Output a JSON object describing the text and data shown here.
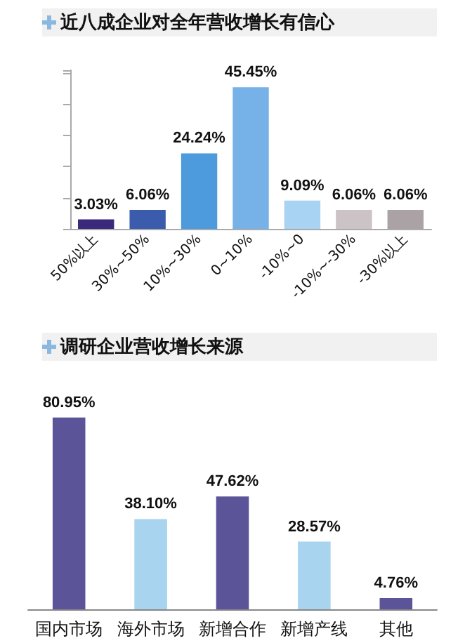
{
  "chart_data": [
    {
      "type": "bar",
      "title": "近八成企业对全年营收增长有信心",
      "categories": [
        "50%以上",
        "30%~50%",
        "10%~30%",
        "0~10%",
        "-10%~0",
        "-10%~-30%",
        "-30%以上"
      ],
      "values": [
        3.03,
        6.06,
        24.24,
        45.45,
        9.09,
        6.06,
        6.06
      ],
      "colors": [
        "#3a2a7c",
        "#3b5cad",
        "#4d9bdc",
        "#76b2e7",
        "#a9d3f2",
        "#cbc3c6",
        "#aba2a5"
      ],
      "value_labels": [
        "3.03%",
        "6.06%",
        "24.24%",
        "45.45%",
        "9.09%",
        "6.06%",
        "6.06%"
      ],
      "tick_labels": "x",
      "grid": false
    },
    {
      "type": "bar",
      "title": "调研企业营收增长来源",
      "categories": [
        "国内市场",
        "海外市场",
        "新增合作",
        "新增产线",
        "其他"
      ],
      "values": [
        80.95,
        38.1,
        47.62,
        28.57,
        4.76
      ],
      "colors": [
        "#5c5499",
        "#a8d4f0",
        "#5c5499",
        "#a8d4f0",
        "#5c5499"
      ],
      "value_labels": [
        "80.95%",
        "38.10%",
        "47.62%",
        "28.57%",
        "4.76%"
      ],
      "tick_labels": "x"
    }
  ]
}
